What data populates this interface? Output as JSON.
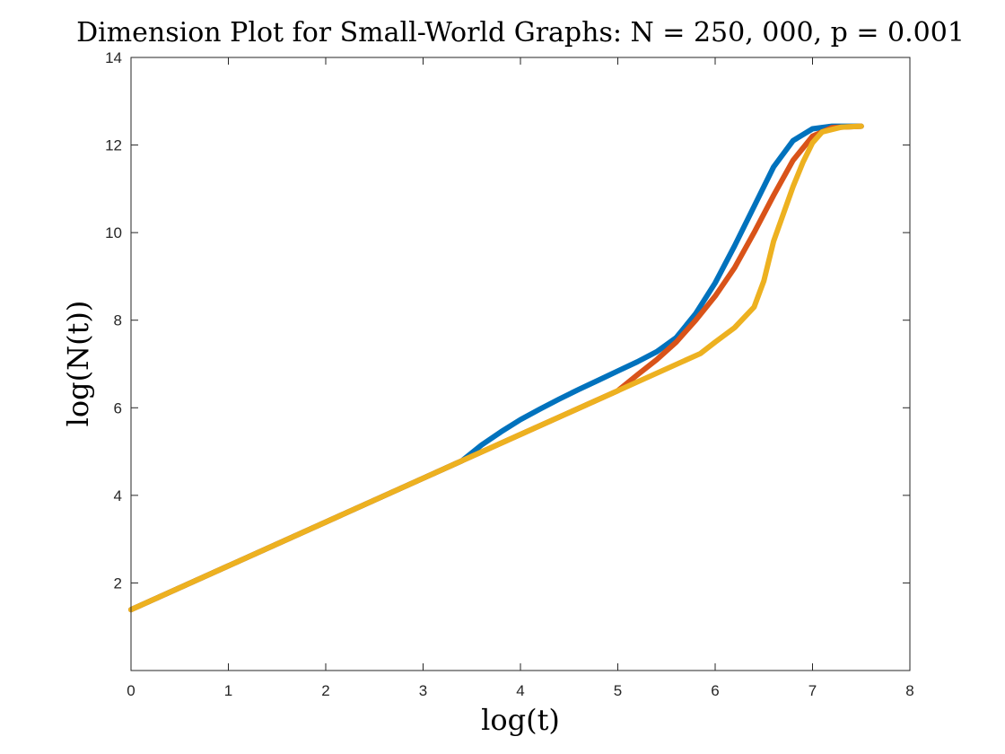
{
  "chart_data": {
    "type": "line",
    "title": "Dimension Plot for Small-World Graphs: N = 250, 000, p = 0.001",
    "xlabel": "log(t)",
    "ylabel": "log(N(t))",
    "xlim": [
      0,
      8
    ],
    "ylim": [
      0,
      14
    ],
    "xticks": [
      0,
      1,
      2,
      3,
      4,
      5,
      6,
      7,
      8
    ],
    "yticks": [
      2,
      4,
      6,
      8,
      10,
      12,
      14
    ],
    "grid": false,
    "legend": "none",
    "series": [
      {
        "color": "#0072BD",
        "points": [
          [
            0,
            1.39
          ],
          [
            1,
            2.39
          ],
          [
            2,
            3.39
          ],
          [
            3,
            4.39
          ],
          [
            3.4,
            4.79
          ],
          [
            3.6,
            5.15
          ],
          [
            3.8,
            5.45
          ],
          [
            4.0,
            5.73
          ],
          [
            4.2,
            5.97
          ],
          [
            4.4,
            6.2
          ],
          [
            4.6,
            6.42
          ],
          [
            4.8,
            6.63
          ],
          [
            5.0,
            6.84
          ],
          [
            5.2,
            7.05
          ],
          [
            5.4,
            7.28
          ],
          [
            5.6,
            7.6
          ],
          [
            5.8,
            8.15
          ],
          [
            6.0,
            8.85
          ],
          [
            6.2,
            9.7
          ],
          [
            6.4,
            10.6
          ],
          [
            6.6,
            11.5
          ],
          [
            6.8,
            12.1
          ],
          [
            7.0,
            12.37
          ],
          [
            7.2,
            12.43
          ],
          [
            7.5,
            12.43
          ]
        ]
      },
      {
        "color": "#D95319",
        "points": [
          [
            0,
            1.39
          ],
          [
            1,
            2.39
          ],
          [
            2,
            3.39
          ],
          [
            3,
            4.39
          ],
          [
            4,
            5.39
          ],
          [
            5,
            6.39
          ],
          [
            5.2,
            6.75
          ],
          [
            5.4,
            7.1
          ],
          [
            5.6,
            7.5
          ],
          [
            5.8,
            8.0
          ],
          [
            6.0,
            8.55
          ],
          [
            6.2,
            9.2
          ],
          [
            6.4,
            10.0
          ],
          [
            6.6,
            10.85
          ],
          [
            6.8,
            11.65
          ],
          [
            7.0,
            12.2
          ],
          [
            7.2,
            12.4
          ],
          [
            7.5,
            12.43
          ]
        ]
      },
      {
        "color": "#EDB120",
        "points": [
          [
            0,
            1.39
          ],
          [
            1,
            2.39
          ],
          [
            2,
            3.39
          ],
          [
            3,
            4.39
          ],
          [
            4,
            5.39
          ],
          [
            5,
            6.39
          ],
          [
            5.85,
            7.24
          ],
          [
            6.0,
            7.5
          ],
          [
            6.2,
            7.83
          ],
          [
            6.4,
            8.3
          ],
          [
            6.5,
            8.9
          ],
          [
            6.6,
            9.8
          ],
          [
            6.8,
            11.05
          ],
          [
            6.9,
            11.6
          ],
          [
            7.0,
            12.05
          ],
          [
            7.1,
            12.3
          ],
          [
            7.3,
            12.41
          ],
          [
            7.5,
            12.43
          ]
        ]
      }
    ]
  }
}
